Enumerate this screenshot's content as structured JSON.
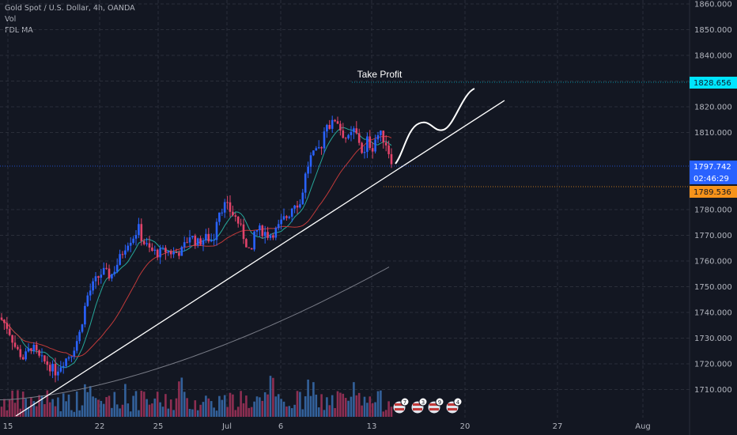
{
  "legend": {
    "symbol": "Gold Spot / U.S. Dollar, 4h, OANDA",
    "indicator_1": "Vol",
    "indicator_2": "FDL MA"
  },
  "colors": {
    "background": "#131722",
    "grid": "#2a2e39",
    "candle_up": "#2962ff",
    "candle_down": "#e2436a",
    "vol_up": "#3a6fb0",
    "vol_down": "#a3335a",
    "ma_fast": "#26a69a",
    "ma_slow": "#c23a3a",
    "ma_long": "#787b86",
    "current_price_tag": "#00bcd4",
    "target_price_tag": "#00e5ff",
    "ma_price_tag": "#f7931a",
    "trendline": "#ffffff"
  },
  "annotations": {
    "take_profit": "Take Profit"
  },
  "price_tags": {
    "target": "1828.656",
    "current": "1797.742",
    "countdown": "02:46:29",
    "ma": "1789.536"
  },
  "event_badges": [
    {
      "count": "7",
      "icon": "us-flag-icon"
    },
    {
      "count": "3",
      "icon": "de-flag-icon"
    },
    {
      "count": "9",
      "icon": "us-flag-icon"
    },
    {
      "count": "4",
      "icon": "us-flag-icon"
    }
  ],
  "chart_data": {
    "type": "candlestick",
    "y_ticks": [
      "1860.000",
      "1850.000",
      "1840.000",
      "1830.000",
      "1820.000",
      "1810.000",
      "1780.000",
      "1770.000",
      "1760.000",
      "1750.000",
      "1740.000",
      "1730.000",
      "1720.000",
      "1710.000"
    ],
    "x_ticks": [
      "15",
      "22",
      "25",
      "Jul",
      "6",
      "13",
      "20",
      "27",
      "Aug"
    ],
    "ylim": [
      1703,
      1862
    ],
    "grid": true,
    "price_path": [
      [
        0,
        1738
      ],
      [
        10,
        1734
      ],
      [
        20,
        1726
      ],
      [
        30,
        1722
      ],
      [
        40,
        1727
      ],
      [
        50,
        1722
      ],
      [
        60,
        1720
      ],
      [
        70,
        1717
      ],
      [
        80,
        1721
      ],
      [
        90,
        1724
      ],
      [
        100,
        1731
      ],
      [
        110,
        1746
      ],
      [
        120,
        1752
      ],
      [
        130,
        1756
      ],
      [
        140,
        1754
      ],
      [
        150,
        1760
      ],
      [
        160,
        1767
      ],
      [
        170,
        1770
      ],
      [
        175,
        1773
      ],
      [
        180,
        1768
      ],
      [
        190,
        1764
      ],
      [
        200,
        1763
      ],
      [
        210,
        1764
      ],
      [
        220,
        1763
      ],
      [
        230,
        1764
      ],
      [
        240,
        1770
      ],
      [
        250,
        1767
      ],
      [
        260,
        1769
      ],
      [
        270,
        1768
      ],
      [
        275,
        1779
      ],
      [
        285,
        1782
      ],
      [
        295,
        1778
      ],
      [
        300,
        1776
      ],
      [
        310,
        1768
      ],
      [
        318,
        1762
      ],
      [
        322,
        1772
      ],
      [
        330,
        1772
      ],
      [
        340,
        1770
      ],
      [
        350,
        1772
      ],
      [
        358,
        1776
      ],
      [
        365,
        1778
      ],
      [
        372,
        1783
      ],
      [
        380,
        1782
      ],
      [
        385,
        1792
      ],
      [
        392,
        1800
      ],
      [
        400,
        1802
      ],
      [
        408,
        1806
      ],
      [
        412,
        1815
      ],
      [
        418,
        1812
      ],
      [
        425,
        1816
      ],
      [
        432,
        1810
      ],
      [
        440,
        1807
      ],
      [
        448,
        1811
      ],
      [
        455,
        1806
      ],
      [
        460,
        1800
      ],
      [
        465,
        1808
      ],
      [
        470,
        1803
      ],
      [
        476,
        1809
      ],
      [
        482,
        1809
      ],
      [
        488,
        1806
      ],
      [
        494,
        1800
      ],
      [
        498,
        1798
      ]
    ]
  }
}
